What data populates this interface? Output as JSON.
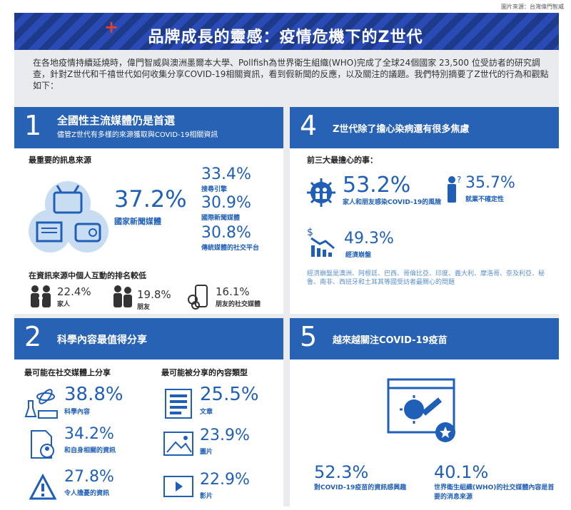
{
  "source": "圖片來源：台灣偉門智威",
  "title": "品牌成長的靈感：疫情危機下的Z世代",
  "intro": "在各地疫情持續延燒時，偉門智威與澳洲墨爾本大學、Pollfish為世界衛生組織(WHO)完成了全球24個國家 23,500 位受訪者的研究調查，針對Z世代和千禧世代如何收集分享COVID-19相關資訊，看到假新聞的反應，以及關注的議題。我們特別摘要了Z世代的行為和觀點如下：",
  "s1": {
    "num": "1",
    "title": "全國性主流媒體仍是首選",
    "subtitle": "儘管Z世代有多樣的來源獲取與COVID-19相關資訊",
    "heading": "最重要的訊息來源",
    "main_pct": "37.2%",
    "main_label": "國家新聞媒體",
    "items": [
      {
        "pct": "33.4%",
        "label": "搜尋引擎"
      },
      {
        "pct": "30.9%",
        "label": "國際新聞媒體"
      },
      {
        "pct": "30.8%",
        "label": "傳統媒體的社交平台"
      }
    ],
    "heading2": "在資訊來源中個人互動的排名較低",
    "people": [
      {
        "pct": "22.4%",
        "label": "家人"
      },
      {
        "pct": "19.8%",
        "label": "朋友"
      },
      {
        "pct": "16.1%",
        "label": "朋友的社交媒體"
      }
    ]
  },
  "s4": {
    "num": "4",
    "title": "Z世代除了擔心染病還有很多焦慮",
    "heading": "前三大最擔心的事：",
    "a_pct": "53.2%",
    "a_label": "家人和朋友感染COVID-19的風險",
    "b_pct": "35.7%",
    "b_label": "就業不確定性",
    "c_pct": "49.3%",
    "c_label": "經濟崩盤",
    "note": "經濟崩盤是澳洲、阿根廷、巴西、哥倫比亞、印度、義大利、摩洛哥、奈及利亞、秘魯、南非、西班牙和土耳其等國受訪者最關心的問題"
  },
  "s2": {
    "num": "2",
    "title": "科學內容最值得分享",
    "col1_heading": "最可能在社交媒體上分享",
    "col2_heading": "最可能被分享的內容類型",
    "col1": [
      {
        "pct": "38.8%",
        "label": "科學內容"
      },
      {
        "pct": "34.2%",
        "label": "和自身相關的資訊"
      },
      {
        "pct": "27.8%",
        "label": "令人擔憂的資訊"
      }
    ],
    "col2": [
      {
        "pct": "25.5%",
        "label": "文章"
      },
      {
        "pct": "23.9%",
        "label": "圖片"
      },
      {
        "pct": "22.9%",
        "label": "影片"
      }
    ]
  },
  "s5": {
    "num": "5",
    "title": "越來越關注COVID-19疫苗",
    "a_pct": "52.3%",
    "a_label": "對COVID-19疫苗的資訊感興趣",
    "b_pct": "40.1%",
    "b_label": "世界衛生組織(WHO)的社交媒體內容是首要的消息來源"
  },
  "colors": {
    "primary": "#2862b5",
    "accent": "#e2402f",
    "panel": "#e9ebee",
    "text_blue": "#1f5fb8"
  }
}
